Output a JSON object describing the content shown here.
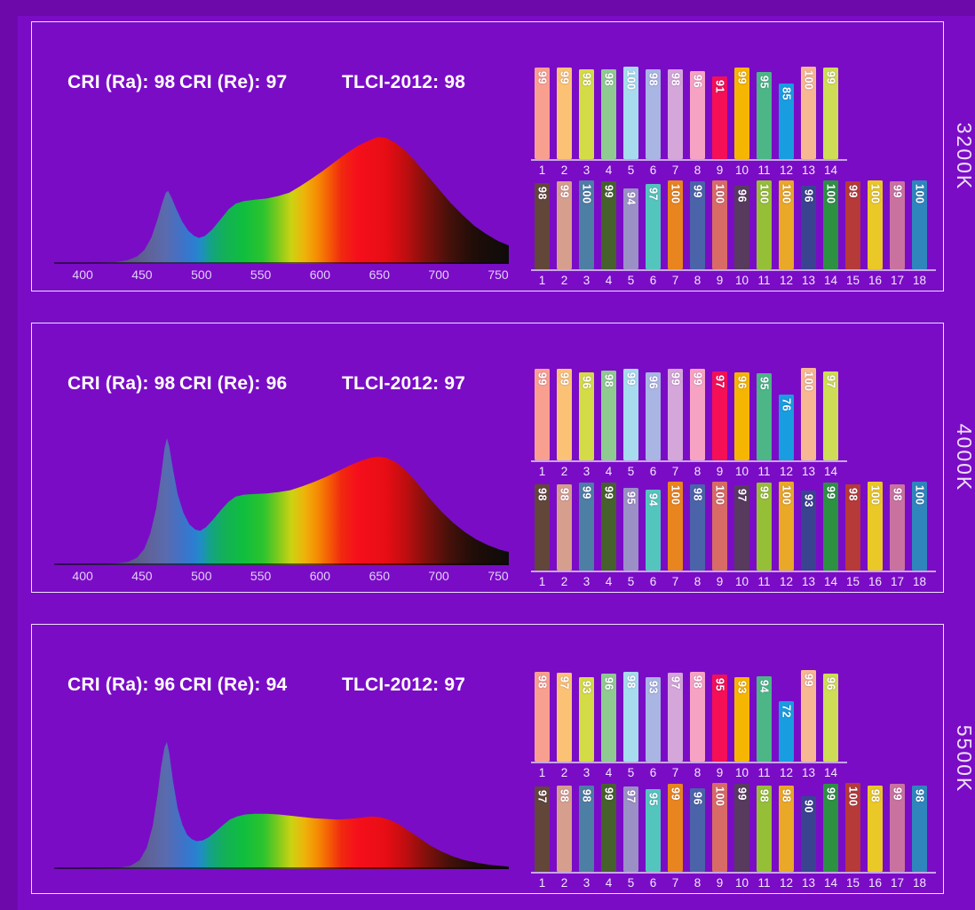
{
  "style": {
    "bg": "#7a0cc6",
    "bg_edge": "#6d09ab",
    "panel_border": "#eee2fa",
    "text_color": "#ffffff",
    "tick_color": "#e2cff7",
    "bar_axis_color": "#c9a4e9",
    "bar_colors_14": [
      "#f99f90",
      "#fbc275",
      "#d3dc46",
      "#8fcb90",
      "#a6dcee",
      "#a9b5e3",
      "#d4a6d9",
      "#f6a3c3",
      "#f40f57",
      "#f6b500",
      "#4cb687",
      "#189ee0",
      "#f8b793",
      "#cedd55"
    ],
    "bar_colors_18": [
      "#62463a",
      "#d69e8d",
      "#4d7ea4",
      "#46612c",
      "#9b90c5",
      "#54c5bd",
      "#e8851e",
      "#4a63a9",
      "#d96b66",
      "#573a5e",
      "#95bf37",
      "#e9a827",
      "#394390",
      "#2d9142",
      "#b53a38",
      "#e9c827",
      "#c972a0",
      "#2f86bd"
    ],
    "spectrum_gradient": [
      [
        0.0,
        "#3b3752"
      ],
      [
        0.155,
        "#5a5680"
      ],
      [
        0.21,
        "#5e639a"
      ],
      [
        0.245,
        "#5a6bae"
      ],
      [
        0.275,
        "#4570c4"
      ],
      [
        0.305,
        "#2e7cd2"
      ],
      [
        0.325,
        "#1f8fc0"
      ],
      [
        0.345,
        "#14a383"
      ],
      [
        0.375,
        "#14b058"
      ],
      [
        0.415,
        "#0fbe3e"
      ],
      [
        0.46,
        "#2cc32f"
      ],
      [
        0.492,
        "#7cca1e"
      ],
      [
        0.522,
        "#ccd313"
      ],
      [
        0.55,
        "#eeb40a"
      ],
      [
        0.578,
        "#f58d04"
      ],
      [
        0.605,
        "#f55c06"
      ],
      [
        0.632,
        "#f1280f"
      ],
      [
        0.668,
        "#f50f1b"
      ],
      [
        0.728,
        "#e80d14"
      ],
      [
        0.772,
        "#c10d10"
      ],
      [
        0.82,
        "#7f100c"
      ],
      [
        0.872,
        "#43100a"
      ],
      [
        0.924,
        "#1f0d08"
      ],
      [
        1.0,
        "#0d0b0b"
      ]
    ]
  },
  "panels": [
    {
      "temp_label": "3200K",
      "stats": {
        "cri_ra": "CRI (Ra): 98",
        "cri_re": "CRI (Re): 97",
        "tlci": "TLCI-2012: 98"
      }
    },
    {
      "temp_label": "4000K",
      "stats": {
        "cri_ra": "CRI (Ra): 98",
        "cri_re": "CRI (Re): 96",
        "tlci": "TLCI-2012: 97"
      }
    },
    {
      "temp_label": "5500K",
      "stats": {
        "cri_ra": "CRI (Ra): 96",
        "cri_re": "CRI (Re): 94",
        "tlci": "TLCI-2012: 97"
      }
    }
  ],
  "chart_data": [
    {
      "panel": "3200K",
      "spectrum": {
        "type": "area",
        "x_range": [
          376,
          759
        ],
        "xticks": [
          "400",
          "450",
          "500",
          "550",
          "600",
          "650",
          "700",
          "750"
        ],
        "show_xticks": true,
        "curve_points": [
          [
            376,
            0
          ],
          [
            400,
            0.005
          ],
          [
            415,
            0.008
          ],
          [
            428,
            0.015
          ],
          [
            438,
            0.03
          ],
          [
            446,
            0.06
          ],
          [
            452,
            0.11
          ],
          [
            458,
            0.21
          ],
          [
            463,
            0.35
          ],
          [
            467,
            0.48
          ],
          [
            470,
            0.56
          ],
          [
            472,
            0.575
          ],
          [
            475,
            0.52
          ],
          [
            479,
            0.43
          ],
          [
            484,
            0.33
          ],
          [
            489,
            0.26
          ],
          [
            494,
            0.22
          ],
          [
            498,
            0.205
          ],
          [
            503,
            0.22
          ],
          [
            509,
            0.27
          ],
          [
            516,
            0.35
          ],
          [
            523,
            0.43
          ],
          [
            529,
            0.475
          ],
          [
            536,
            0.495
          ],
          [
            545,
            0.505
          ],
          [
            555,
            0.515
          ],
          [
            565,
            0.535
          ],
          [
            574,
            0.56
          ],
          [
            583,
            0.61
          ],
          [
            592,
            0.665
          ],
          [
            602,
            0.73
          ],
          [
            612,
            0.8
          ],
          [
            622,
            0.87
          ],
          [
            632,
            0.93
          ],
          [
            641,
            0.97
          ],
          [
            649,
            1.0
          ],
          [
            656,
            0.99
          ],
          [
            664,
            0.95
          ],
          [
            672,
            0.89
          ],
          [
            681,
            0.8
          ],
          [
            690,
            0.7
          ],
          [
            700,
            0.59
          ],
          [
            710,
            0.48
          ],
          [
            720,
            0.385
          ],
          [
            730,
            0.3
          ],
          [
            740,
            0.235
          ],
          [
            750,
            0.18
          ],
          [
            759,
            0.145
          ]
        ]
      },
      "cri_samples_1_14": {
        "type": "bar",
        "categories": [
          "1",
          "2",
          "3",
          "4",
          "5",
          "6",
          "7",
          "8",
          "9",
          "10",
          "11",
          "12",
          "13",
          "14"
        ],
        "values": [
          99,
          99,
          98,
          98,
          100,
          98,
          98,
          96,
          91,
          99,
          95,
          85,
          100,
          99
        ]
      },
      "cri_samples_1_18": {
        "type": "bar",
        "categories": [
          "1",
          "2",
          "3",
          "4",
          "5",
          "6",
          "7",
          "8",
          "9",
          "10",
          "11",
          "12",
          "13",
          "14",
          "15",
          "16",
          "17",
          "18"
        ],
        "values": [
          98,
          99,
          100,
          99,
          94,
          97,
          100,
          99,
          100,
          96,
          100,
          100,
          96,
          100,
          99,
          100,
          99,
          100
        ]
      }
    },
    {
      "panel": "4000K",
      "spectrum": {
        "type": "area",
        "x_range": [
          376,
          759
        ],
        "xticks": [
          "400",
          "450",
          "500",
          "550",
          "600",
          "650",
          "700",
          "750"
        ],
        "show_xticks": true,
        "curve_points": [
          [
            376,
            0
          ],
          [
            405,
            0.004
          ],
          [
            425,
            0.01
          ],
          [
            438,
            0.025
          ],
          [
            446,
            0.06
          ],
          [
            452,
            0.13
          ],
          [
            457,
            0.25
          ],
          [
            462,
            0.45
          ],
          [
            466,
            0.7
          ],
          [
            469,
            0.92
          ],
          [
            471,
            1.0
          ],
          [
            473,
            0.93
          ],
          [
            476,
            0.76
          ],
          [
            480,
            0.56
          ],
          [
            485,
            0.41
          ],
          [
            490,
            0.32
          ],
          [
            495,
            0.28
          ],
          [
            499,
            0.27
          ],
          [
            504,
            0.3
          ],
          [
            510,
            0.36
          ],
          [
            517,
            0.44
          ],
          [
            523,
            0.5
          ],
          [
            529,
            0.54
          ],
          [
            536,
            0.555
          ],
          [
            545,
            0.56
          ],
          [
            555,
            0.565
          ],
          [
            565,
            0.575
          ],
          [
            575,
            0.59
          ],
          [
            585,
            0.62
          ],
          [
            595,
            0.655
          ],
          [
            605,
            0.695
          ],
          [
            615,
            0.74
          ],
          [
            625,
            0.785
          ],
          [
            634,
            0.82
          ],
          [
            642,
            0.845
          ],
          [
            649,
            0.855
          ],
          [
            656,
            0.845
          ],
          [
            664,
            0.81
          ],
          [
            673,
            0.74
          ],
          [
            682,
            0.645
          ],
          [
            692,
            0.53
          ],
          [
            702,
            0.425
          ],
          [
            712,
            0.335
          ],
          [
            722,
            0.26
          ],
          [
            732,
            0.2
          ],
          [
            742,
            0.155
          ],
          [
            752,
            0.12
          ],
          [
            759,
            0.105
          ]
        ]
      },
      "cri_samples_1_14": {
        "type": "bar",
        "categories": [
          "1",
          "2",
          "3",
          "4",
          "5",
          "6",
          "7",
          "8",
          "9",
          "10",
          "11",
          "12",
          "13",
          "14"
        ],
        "values": [
          99,
          99,
          96,
          98,
          99,
          96,
          99,
          99,
          97,
          96,
          95,
          76,
          100,
          97
        ]
      },
      "cri_samples_1_18": {
        "type": "bar",
        "categories": [
          "1",
          "2",
          "3",
          "4",
          "5",
          "6",
          "7",
          "8",
          "9",
          "10",
          "11",
          "12",
          "13",
          "14",
          "15",
          "16",
          "17",
          "18"
        ],
        "values": [
          98,
          98,
          99,
          99,
          95,
          94,
          100,
          98,
          100,
          97,
          99,
          100,
          93,
          99,
          98,
          100,
          98,
          100
        ]
      }
    },
    {
      "panel": "5500K",
      "spectrum": {
        "type": "area",
        "x_range": [
          376,
          759
        ],
        "xticks": [],
        "show_xticks": false,
        "curve_points": [
          [
            376,
            0
          ],
          [
            410,
            0.004
          ],
          [
            430,
            0.01
          ],
          [
            440,
            0.025
          ],
          [
            448,
            0.07
          ],
          [
            454,
            0.17
          ],
          [
            459,
            0.34
          ],
          [
            463,
            0.58
          ],
          [
            466,
            0.8
          ],
          [
            469,
            0.96
          ],
          [
            471,
            1.0
          ],
          [
            473,
            0.91
          ],
          [
            476,
            0.7
          ],
          [
            480,
            0.48
          ],
          [
            484,
            0.35
          ],
          [
            488,
            0.27
          ],
          [
            492,
            0.235
          ],
          [
            496,
            0.22
          ],
          [
            501,
            0.225
          ],
          [
            506,
            0.25
          ],
          [
            512,
            0.295
          ],
          [
            518,
            0.345
          ],
          [
            524,
            0.39
          ],
          [
            530,
            0.415
          ],
          [
            537,
            0.43
          ],
          [
            545,
            0.435
          ],
          [
            555,
            0.435
          ],
          [
            565,
            0.43
          ],
          [
            575,
            0.42
          ],
          [
            585,
            0.41
          ],
          [
            595,
            0.4
          ],
          [
            605,
            0.395
          ],
          [
            615,
            0.39
          ],
          [
            625,
            0.395
          ],
          [
            635,
            0.405
          ],
          [
            643,
            0.415
          ],
          [
            650,
            0.41
          ],
          [
            658,
            0.39
          ],
          [
            666,
            0.355
          ],
          [
            674,
            0.305
          ],
          [
            683,
            0.25
          ],
          [
            692,
            0.19
          ],
          [
            702,
            0.14
          ],
          [
            712,
            0.1
          ],
          [
            722,
            0.07
          ],
          [
            732,
            0.05
          ],
          [
            742,
            0.035
          ],
          [
            752,
            0.025
          ],
          [
            759,
            0.02
          ]
        ]
      },
      "cri_samples_1_14": {
        "type": "bar",
        "categories": [
          "1",
          "2",
          "3",
          "4",
          "5",
          "6",
          "7",
          "8",
          "9",
          "10",
          "11",
          "12",
          "13",
          "14"
        ],
        "values": [
          98,
          97,
          93,
          96,
          98,
          93,
          97,
          98,
          95,
          93,
          94,
          72,
          99,
          96
        ]
      },
      "cri_samples_1_18": {
        "type": "bar",
        "categories": [
          "1",
          "2",
          "3",
          "4",
          "5",
          "6",
          "7",
          "8",
          "9",
          "10",
          "11",
          "12",
          "13",
          "14",
          "15",
          "16",
          "17",
          "18"
        ],
        "values": [
          97,
          98,
          98,
          99,
          97,
          95,
          99,
          96,
          100,
          99,
          98,
          98,
          90,
          99,
          100,
          98,
          99,
          98
        ]
      }
    }
  ]
}
